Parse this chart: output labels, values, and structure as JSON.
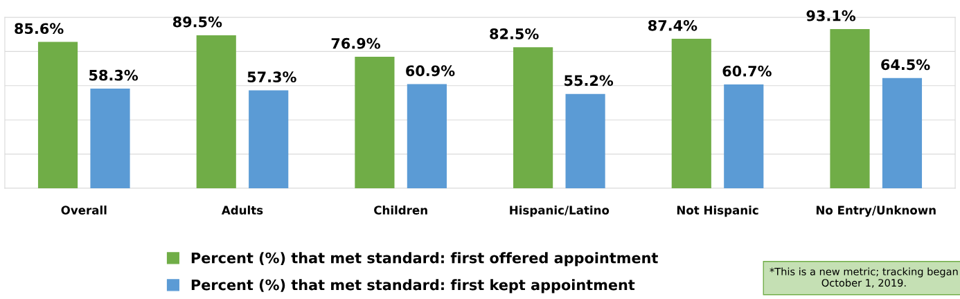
{
  "chart_data": {
    "type": "bar",
    "categories": [
      "Overall",
      "Adults",
      "Children",
      "Hispanic/Latino",
      "Not Hispanic",
      "No Entry/Unknown"
    ],
    "series": [
      {
        "name": "Percent (%) that met standard: first offered appointment",
        "color": "#70ad47",
        "values": [
          85.6,
          89.5,
          76.9,
          82.5,
          87.4,
          93.1
        ],
        "value_labels": [
          "85.6%",
          "89.5%",
          "76.9%",
          "82.5%",
          "87.4%",
          "93.1%"
        ]
      },
      {
        "name": "Percent (%) that met standard: first kept appointment",
        "color": "#5b9bd5",
        "values": [
          58.3,
          57.3,
          60.9,
          55.2,
          60.7,
          64.5
        ],
        "value_labels": [
          "58.3%",
          "57.3%",
          "60.9%",
          "55.2%",
          "60.7%",
          "64.5%"
        ]
      }
    ],
    "ylim": [
      0,
      100
    ],
    "yticks": [
      0,
      20,
      40,
      60,
      80,
      100
    ],
    "tick_labels": "x",
    "grid": "y",
    "legend": "bottom",
    "annotations": [
      "*This is a new metric; tracking began October 1, 2019."
    ]
  }
}
